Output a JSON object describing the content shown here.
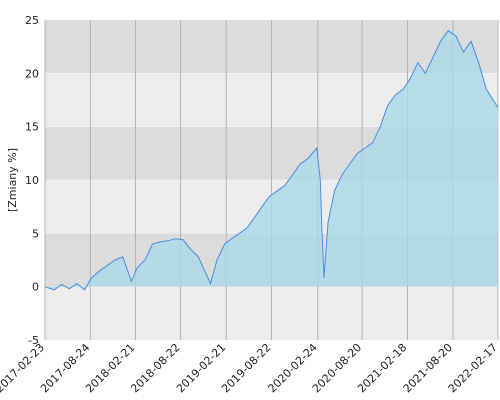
{
  "chart_data": {
    "type": "area",
    "y_label": "[Zmiany %]",
    "x": [
      "2017-02-23",
      "2017-04-01",
      "2017-05-01",
      "2017-06-01",
      "2017-07-01",
      "2017-08-01",
      "2017-08-28",
      "2017-10-01",
      "2017-11-01",
      "2017-12-01",
      "2018-01-01",
      "2018-02-05",
      "2018-03-01",
      "2018-04-01",
      "2018-05-01",
      "2018-06-01",
      "2018-07-01",
      "2018-08-01",
      "2018-09-01",
      "2018-10-01",
      "2018-11-01",
      "2018-12-20",
      "2019-01-15",
      "2019-02-15",
      "2019-03-15",
      "2019-04-15",
      "2019-05-15",
      "2019-06-15",
      "2019-07-15",
      "2019-08-15",
      "2019-09-15",
      "2019-10-15",
      "2019-11-15",
      "2019-12-15",
      "2020-01-15",
      "2020-02-20",
      "2020-03-05",
      "2020-03-12",
      "2020-03-20",
      "2020-04-05",
      "2020-05-01",
      "2020-06-01",
      "2020-07-01",
      "2020-08-01",
      "2020-09-01",
      "2020-10-01",
      "2020-11-01",
      "2020-12-01",
      "2021-01-01",
      "2021-02-01",
      "2021-03-01",
      "2021-04-01",
      "2021-05-01",
      "2021-06-01",
      "2021-07-01",
      "2021-08-01",
      "2021-09-01",
      "2021-10-01",
      "2021-11-01",
      "2021-12-01",
      "2022-01-01",
      "2022-02-17"
    ],
    "series": [
      {
        "name": "Zmiany",
        "color": "#4a90e2",
        "fill": "#add8ea",
        "values": [
          0,
          -0.3,
          0.2,
          -0.2,
          0.3,
          -0.3,
          0.8,
          1.5,
          2,
          2.5,
          2.8,
          0.5,
          1.8,
          2.5,
          4,
          4.2,
          4.3,
          4.5,
          4.4,
          3.5,
          2.8,
          0.3,
          2.5,
          4,
          4.5,
          5,
          5.5,
          6.5,
          7.5,
          8.5,
          9,
          9.5,
          10.5,
          11.5,
          12,
          13,
          10,
          5,
          0.8,
          6,
          9,
          10.5,
          11.5,
          12.5,
          13,
          13.5,
          15,
          17,
          18,
          18.5,
          19.5,
          21,
          20,
          21.5,
          23,
          24,
          23.5,
          22,
          23,
          21,
          18.5,
          16.8
        ]
      }
    ],
    "xlim": [
      "2017-02-23",
      "2022-02-17"
    ],
    "xticks": [
      "2017-02-23",
      "2017-08-24",
      "2018-02-21",
      "2018-08-22",
      "2019-02-21",
      "2019-08-22",
      "2020-02-24",
      "2020-08-20",
      "2021-02-18",
      "2021-08-20",
      "2022-02-17"
    ],
    "ylim": [
      -5,
      25
    ],
    "yticks": [
      -5,
      0,
      5,
      10,
      15,
      20,
      25
    ],
    "grid": true
  }
}
